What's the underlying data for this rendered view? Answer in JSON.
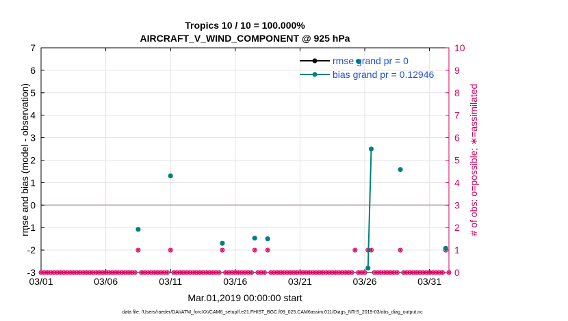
{
  "chart_data": {
    "type": "line",
    "title_line1": "Tropics 10 / 10 = 100.000%",
    "title_line2": "AIRCRAFT_V_WIND_COMPONENT @ 925 hPa",
    "xlabel": "Mar.01,2019 00:00:00 start",
    "ylabel": "rmse and bias (model - observation)",
    "y2label": "# of obs: o=possible; ∗=assimilated",
    "footer": "data file: /Users/raeder/DAI/ATM_forcXX/CAM6_setup/f.e21.FHIST_BGC.f09_025.CAM6assim.011/Diags_NTrS_2019-03/obs_diag_output.nc",
    "xlim": [
      1,
      32.5
    ],
    "ylim": [
      -3,
      7
    ],
    "y2lim": [
      0,
      10
    ],
    "x_ticks": [
      1,
      6,
      11,
      16,
      21,
      26,
      31
    ],
    "x_tick_labels": [
      "03/01",
      "03/06",
      "03/11",
      "03/16",
      "03/21",
      "03/26",
      "03/31"
    ],
    "y_ticks": [
      -3,
      -2,
      -1,
      0,
      1,
      2,
      3,
      4,
      5,
      6,
      7
    ],
    "y_tick_labels": [
      "-3",
      "-2",
      "-1",
      "0",
      "1",
      "2",
      "3",
      "4",
      "5",
      "6",
      "7"
    ],
    "y2_ticks": [
      0,
      1,
      2,
      3,
      4,
      5,
      6,
      7,
      8,
      9,
      10
    ],
    "y2_tick_labels": [
      "0",
      "1",
      "2",
      "3",
      "4",
      "5",
      "6",
      "7",
      "8",
      "9",
      "10"
    ],
    "grid": true,
    "zero_line": 0,
    "colors": {
      "rmse": "#000000",
      "bias": "#008080",
      "obs": "#d6005f",
      "legend_text": "#1f4fd6",
      "grid": "#e3e3e3",
      "zero": "#b3a6b3"
    },
    "legend": {
      "position": "top-right",
      "entries": [
        "rmse grand pr = 0",
        "bias grand pr = 0.12946"
      ]
    },
    "series": [
      {
        "name": "rmse grand pr = 0",
        "x": [
          25.5
        ],
        "y": [
          6.4
        ]
      },
      {
        "name": "bias grand pr = 0.12946",
        "x": [
          8.5,
          11,
          15,
          17.5,
          18.5,
          26.25,
          26.5,
          28.75,
          32.25
        ],
        "y": [
          -1.08,
          1.3,
          -1.7,
          -1.47,
          -1.5,
          -2.8,
          2.5,
          1.58,
          -1.92
        ],
        "connect": [
          [
            26.25,
            26.5
          ]
        ]
      },
      {
        "name": "obs possible",
        "axis": "right",
        "x_start": 1,
        "x_step": 0.25,
        "count": 127,
        "nonzero": {
          "8.5": 1,
          "11": 1,
          "15": 1,
          "17.5": 1,
          "18.5": 1,
          "25.25": 1,
          "26.25": 1,
          "26.5": 1,
          "28.75": 1,
          "32.25": 1
        }
      }
    ]
  }
}
